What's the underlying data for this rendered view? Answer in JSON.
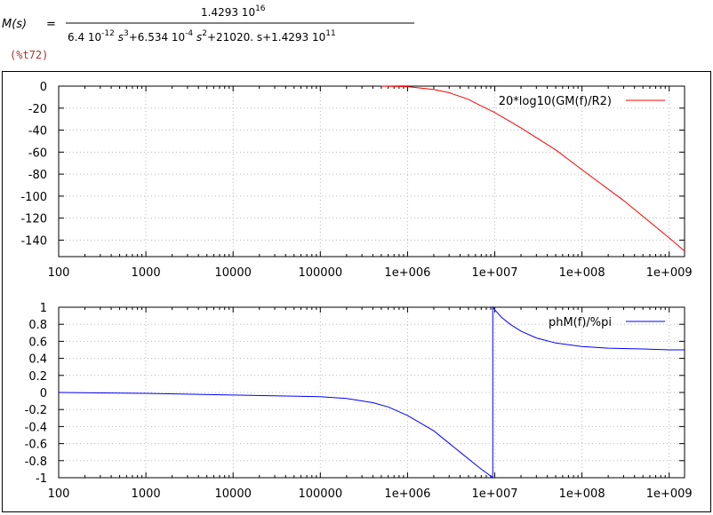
{
  "equation": {
    "lhs": "M(s)",
    "equals": "=",
    "numerator": {
      "mantissa": "1.4293 10",
      "exp": "16"
    },
    "denominator": {
      "t1": "6.4 10",
      "t1e": "-12",
      "t1s": " s",
      "t1se": "3",
      "t2": "+6.534 10",
      "t2e": "-4",
      "t2s": " s",
      "t2se": "2",
      "t3": "+21020. s+1.4293 10",
      "t3e": "11"
    }
  },
  "output_label": "(%t72)",
  "chart_data": [
    {
      "type": "line",
      "title": "",
      "xlabel": "",
      "ylabel": "",
      "xscale": "log",
      "xlim": [
        100,
        1500000000
      ],
      "ylim": [
        -155,
        0
      ],
      "x_ticks": [
        "100",
        "1000",
        "10000",
        "100000",
        "1e+006",
        "1e+007",
        "1e+008",
        "1e+009"
      ],
      "y_ticks": [
        "0",
        "-20",
        "-40",
        "-60",
        "-80",
        "-100",
        "-120",
        "-140"
      ],
      "grid": true,
      "legend_position": "top-right",
      "series": [
        {
          "name": "20*log10(GM(f)/R2)",
          "color": "#ff0000",
          "x": [
            500000,
            1000000,
            2000000,
            3000000,
            5000000,
            7000000,
            10000000,
            20000000,
            50000000,
            100000000,
            300000000,
            1000000000,
            1500000000
          ],
          "y": [
            0,
            -0.5,
            -3,
            -6,
            -12,
            -18,
            -24,
            -38,
            -58,
            -76,
            -104,
            -138,
            -150
          ]
        }
      ]
    },
    {
      "type": "line",
      "title": "",
      "xlabel": "",
      "ylabel": "",
      "xscale": "log",
      "xlim": [
        100,
        1500000000
      ],
      "ylim": [
        -1,
        1
      ],
      "x_ticks": [
        "100",
        "1000",
        "10000",
        "100000",
        "1e+006",
        "1e+007",
        "1e+008",
        "1e+009"
      ],
      "y_ticks": [
        "1",
        "0.8",
        "0.6",
        "0.4",
        "0.2",
        "0",
        "-0.2",
        "-0.4",
        "-0.6",
        "-0.8",
        "-1"
      ],
      "grid": true,
      "legend_position": "top-right",
      "series": [
        {
          "name": "phM(f)/%pi",
          "color": "#0000ff",
          "x": [
            100,
            1000,
            10000,
            100000,
            200000,
            400000,
            600000,
            1000000,
            2000000,
            4000000,
            7000000,
            9000000,
            9500000,
            9500000,
            10000000,
            12000000,
            15000000,
            20000000,
            30000000,
            50000000,
            100000000,
            200000000,
            500000000,
            1000000000,
            1500000000
          ],
          "y": [
            0,
            -0.01,
            -0.03,
            -0.05,
            -0.07,
            -0.12,
            -0.17,
            -0.27,
            -0.45,
            -0.7,
            -0.9,
            -0.98,
            -1.0,
            1.0,
            0.97,
            0.88,
            0.8,
            0.72,
            0.64,
            0.58,
            0.54,
            0.52,
            0.51,
            0.5,
            0.5
          ]
        }
      ]
    }
  ]
}
